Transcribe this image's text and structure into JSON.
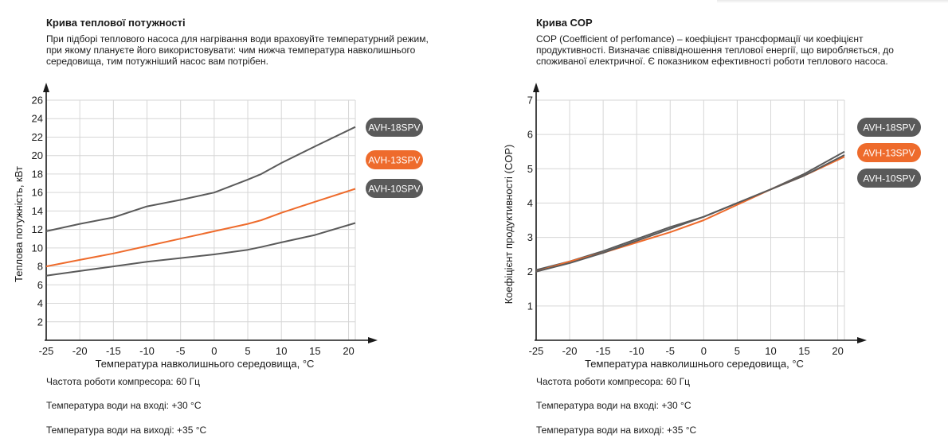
{
  "colors": {
    "gray": "#5a5a5a",
    "orange": "#ee6b2c",
    "grid": "#d6d6d6",
    "axis": "#1a1a1a"
  },
  "left": {
    "title": "Крива теплової потужності",
    "description": "При підборі теплового насоса для нагрівання води враховуйте температурний режим, при якому плануєте його використовувати: чим нижча температура навколишнього середовища, тим потужніший насос вам потрібен.",
    "conditions": [
      "Частота роботи компресора: 60 Гц",
      "Температура води на вході: +30 °С",
      "Температура води на виході: +35 °С"
    ]
  },
  "right": {
    "title": "Крива COP",
    "description": "COP (Coefficient of perfomance) – коефіцієнт трансформації чи коефіцієнт продуктивності. Визначає співвідношення теплової енергії, що виробляється, до споживаної електричної. Є показником ефективності роботи теплового насоса.",
    "conditions": [
      "Частота роботи компресора: 60 Гц",
      "Температура води на вході: +30 °С",
      "Температура води на виході: +35 °С"
    ]
  },
  "chart_data": [
    {
      "type": "line",
      "title": "Крива теплової потужності",
      "xlabel": "Температура навколишнього середовища, °С",
      "ylabel": "Теплова потужність, кВт",
      "xlim": [
        -25,
        21
      ],
      "ylim": [
        0,
        26
      ],
      "xticks": [
        -25,
        -20,
        -15,
        -10,
        -5,
        0,
        5,
        10,
        15,
        20
      ],
      "yticks": [
        2,
        4,
        6,
        8,
        10,
        12,
        14,
        16,
        18,
        20,
        22,
        24,
        26
      ],
      "grid": true,
      "legend_position": "right",
      "series": [
        {
          "name": "AVH-18SPV",
          "color": "#5a5a5a",
          "x": [
            -25,
            -20,
            -15,
            -10,
            -5,
            0,
            5,
            7,
            10,
            15,
            21
          ],
          "y": [
            11.8,
            12.6,
            13.3,
            14.5,
            15.2,
            16.0,
            17.4,
            18.0,
            19.2,
            21.0,
            23.1
          ]
        },
        {
          "name": "AVH-13SPV",
          "color": "#ee6b2c",
          "x": [
            -25,
            -20,
            -15,
            -10,
            -5,
            0,
            5,
            7,
            10,
            15,
            21
          ],
          "y": [
            8.0,
            8.7,
            9.4,
            10.2,
            11.0,
            11.8,
            12.6,
            13.0,
            13.8,
            15.0,
            16.4
          ]
        },
        {
          "name": "AVH-10SPV",
          "color": "#5a5a5a",
          "x": [
            -25,
            -20,
            -15,
            -10,
            -5,
            0,
            5,
            7,
            10,
            15,
            21
          ],
          "y": [
            7.0,
            7.5,
            8.0,
            8.5,
            8.9,
            9.3,
            9.8,
            10.1,
            10.6,
            11.4,
            12.7
          ]
        }
      ]
    },
    {
      "type": "line",
      "title": "Крива COP",
      "xlabel": "Температура навколишнього середовища, °С",
      "ylabel": "Коефіцієнт продуктивності (COP)",
      "xlim": [
        -25,
        21
      ],
      "ylim": [
        0,
        7
      ],
      "xticks": [
        -25,
        -20,
        -15,
        -10,
        -5,
        0,
        5,
        10,
        15,
        20
      ],
      "yticks": [
        1,
        2,
        3,
        4,
        5,
        6,
        7
      ],
      "grid": true,
      "legend_position": "right",
      "series": [
        {
          "name": "AVH-18SPV",
          "color": "#5a5a5a",
          "x": [
            -25,
            -20,
            -15,
            -10,
            -5,
            0,
            5,
            10,
            15,
            21
          ],
          "y": [
            2.05,
            2.3,
            2.6,
            2.95,
            3.3,
            3.6,
            4.0,
            4.4,
            4.85,
            5.5
          ]
        },
        {
          "name": "AVH-13SPV",
          "color": "#ee6b2c",
          "x": [
            -25,
            -20,
            -15,
            -10,
            -5,
            0,
            5,
            10,
            15,
            21
          ],
          "y": [
            2.0,
            2.3,
            2.55,
            2.85,
            3.15,
            3.5,
            3.95,
            4.4,
            4.8,
            5.35
          ]
        },
        {
          "name": "AVH-10SPV",
          "color": "#5a5a5a",
          "x": [
            -25,
            -20,
            -15,
            -10,
            -5,
            0,
            5,
            10,
            15,
            21
          ],
          "y": [
            2.0,
            2.25,
            2.55,
            2.9,
            3.25,
            3.6,
            4.0,
            4.4,
            4.8,
            5.4
          ]
        }
      ]
    }
  ]
}
